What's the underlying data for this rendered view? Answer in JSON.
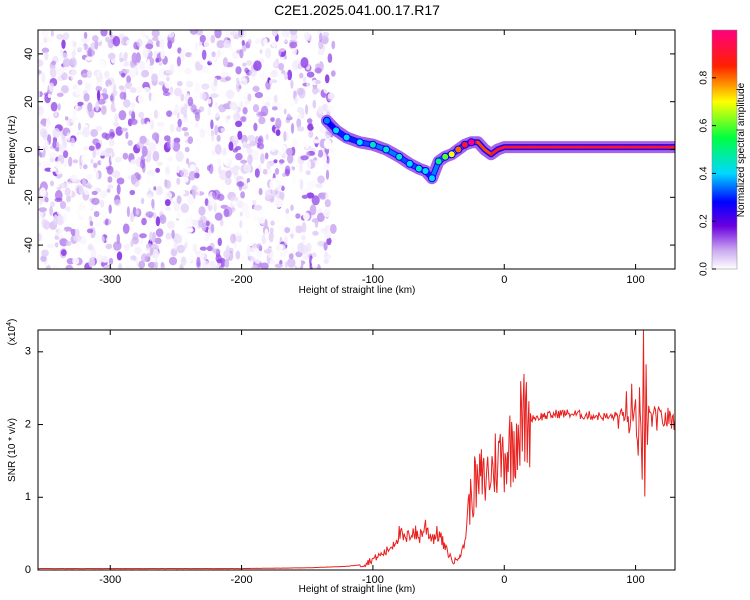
{
  "figure_title": "C2E1.2025.041.00.17.R17",
  "chart_data": [
    {
      "type": "heatmap",
      "title": "C2E1.2025.041.00.17.R17",
      "xlabel": "Height of straight line (km)",
      "ylabel": "Frequency (Hz)",
      "xlim": [
        -355,
        130
      ],
      "ylim": [
        -50,
        50
      ],
      "xticks": [
        -300,
        -200,
        -100,
        0,
        100
      ],
      "yticks": [
        -40,
        -20,
        0,
        20,
        40
      ],
      "xtick_labels": [
        "-300",
        "-200",
        "-100",
        "0",
        "100"
      ],
      "ytick_labels": [
        "-40",
        "-20",
        "0",
        "20",
        "40"
      ],
      "colorbar": {
        "label": "Normalized spectral amplitude",
        "range": [
          0,
          1
        ],
        "ticks": [
          0.0,
          0.2,
          0.4,
          0.6,
          0.8
        ],
        "tick_labels": [
          "0.0",
          "0.2",
          "0.4",
          "0.6",
          "0.8"
        ],
        "colormap": "rainbow (white-violet-blue-cyan-green-yellow-red-magenta)"
      },
      "noise_region": {
        "x_range": [
          -355,
          -130
        ],
        "y_range": [
          -50,
          50
        ],
        "amplitude_range": [
          0.0,
          0.15
        ]
      },
      "signal_trace": {
        "x": [
          -135,
          -128,
          -120,
          -110,
          -100,
          -90,
          -80,
          -72,
          -65,
          -60,
          -55,
          -50,
          -45,
          -40,
          -35,
          -30,
          -25,
          -20,
          -15,
          -10,
          -5,
          0,
          10,
          20,
          40,
          60,
          80,
          90,
          100,
          110,
          130
        ],
        "y": [
          12,
          8,
          5,
          3,
          2,
          0,
          -3,
          -6,
          -8,
          -9,
          -12,
          -5,
          -3,
          -2,
          0,
          2,
          3,
          3,
          0,
          -2,
          0,
          1,
          1,
          1,
          1,
          1,
          1,
          1,
          1,
          1,
          1
        ],
        "amplitude": [
          0.25,
          0.3,
          0.3,
          0.3,
          0.35,
          0.35,
          0.35,
          0.3,
          0.35,
          0.3,
          0.3,
          0.4,
          0.5,
          0.6,
          0.7,
          0.8,
          0.9,
          0.85,
          0.8,
          0.85,
          0.9,
          0.9,
          0.9,
          0.9,
          0.9,
          0.9,
          0.9,
          0.9,
          0.9,
          0.9,
          0.9
        ]
      }
    },
    {
      "type": "line",
      "xlabel": "Height of straight line (km)",
      "ylabel": "SNR (10 * v/v)",
      "multiplier_label": "(x10",
      "multiplier_exp": "4",
      "xlim": [
        -355,
        130
      ],
      "ylim": [
        0,
        3.3
      ],
      "xticks": [
        -300,
        -200,
        -100,
        0,
        100
      ],
      "yticks": [
        0,
        1,
        2,
        3
      ],
      "xtick_labels": [
        "-300",
        "-200",
        "-100",
        "0",
        "100"
      ],
      "ytick_labels": [
        "0",
        "1",
        "2",
        "3"
      ],
      "color": "#e8201e",
      "series": [
        {
          "x": [
            -355,
            -300,
            -250,
            -200,
            -150,
            -120,
            -110,
            -105,
            -100,
            -95,
            -90,
            -85,
            -80,
            -75,
            -70,
            -65,
            -60,
            -55,
            -50,
            -45,
            -40,
            -38,
            -35,
            -32,
            -30,
            -28,
            -25,
            -22,
            -20,
            -18,
            -15,
            -12,
            -10,
            -8,
            -5,
            -3,
            0,
            3,
            5,
            8,
            10,
            15,
            20,
            25,
            30,
            35,
            40,
            50,
            60,
            70,
            80,
            85,
            90,
            93,
            95,
            97,
            98,
            100,
            102,
            103,
            104,
            105,
            106,
            107,
            108,
            109,
            110,
            115,
            120,
            130
          ],
          "y": [
            0.02,
            0.02,
            0.02,
            0.02,
            0.03,
            0.05,
            0.07,
            0.1,
            0.15,
            0.2,
            0.25,
            0.35,
            0.5,
            0.4,
            0.55,
            0.45,
            0.6,
            0.45,
            0.5,
            0.3,
            0.15,
            0.1,
            0.2,
            0.25,
            0.4,
            0.8,
            1.0,
            1.2,
            1.1,
            1.3,
            1.2,
            1.35,
            1.3,
            1.45,
            1.5,
            1.55,
            1.6,
            1.65,
            1.7,
            1.85,
            1.95,
            2.05,
            2.1,
            2.1,
            2.12,
            2.12,
            2.15,
            2.15,
            2.13,
            2.12,
            2.1,
            2.12,
            2.05,
            2.3,
            1.8,
            2.4,
            1.9,
            2.2,
            1.5,
            2.6,
            2.0,
            1.2,
            3.3,
            0.95,
            2.7,
            1.8,
            2.1,
            2.08,
            2.08,
            2.08
          ]
        }
      ]
    }
  ]
}
